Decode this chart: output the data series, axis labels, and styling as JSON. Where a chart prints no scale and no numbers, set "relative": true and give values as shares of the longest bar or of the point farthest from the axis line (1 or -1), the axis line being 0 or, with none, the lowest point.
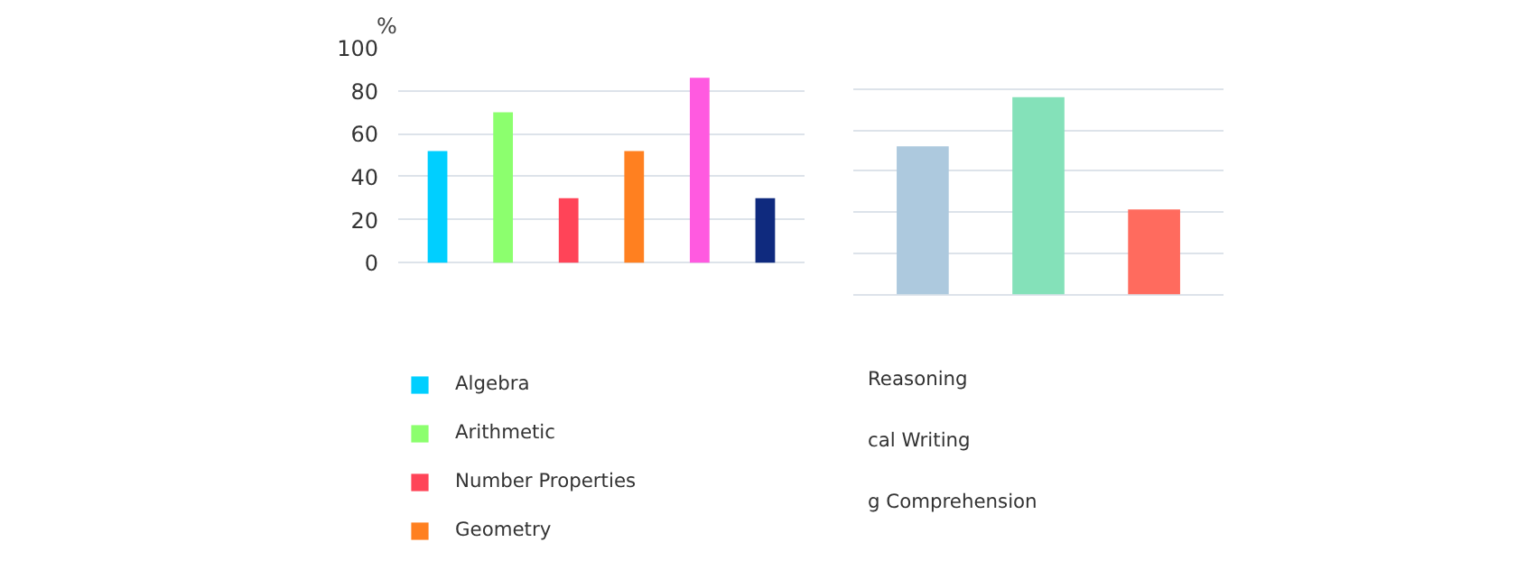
{
  "chart_data": [
    {
      "type": "bar",
      "ylabel": "%",
      "categories": [
        null,
        null,
        null,
        null,
        null,
        null
      ],
      "ylim": [
        0,
        100
      ],
      "yticks": [
        0,
        20,
        40,
        60,
        80,
        100
      ],
      "grid": "y",
      "legend": "bottom",
      "series": [
        {
          "name": "Algebra",
          "color": "#00cfff",
          "values": [
            52,
            null,
            null,
            null,
            null,
            null
          ]
        },
        {
          "name": "Arithmetic",
          "color": "#8cff6e",
          "values": [
            null,
            70,
            null,
            null,
            null,
            null
          ]
        },
        {
          "name": "Number Properties",
          "color": "#ff4458",
          "values": [
            null,
            null,
            30,
            null,
            null,
            null
          ]
        },
        {
          "name": "Geometry",
          "color": "#ff8020",
          "values": [
            null,
            null,
            null,
            52,
            null,
            null
          ]
        },
        {
          "color": "#ff5ae0",
          "values": [
            null,
            null,
            null,
            null,
            86,
            null
          ]
        },
        {
          "color": "#0f2a7e",
          "values": [
            null,
            null,
            null,
            null,
            null,
            30
          ]
        }
      ]
    },
    {
      "type": "bar",
      "relative": true,
      "categories": [
        null,
        null,
        null
      ],
      "grid": "y",
      "values": [
        0.75,
        1,
        0.43
      ],
      "colors": [
        "#adc9de",
        "#84e1b9",
        "#ff6b5e"
      ],
      "annotations": [
        "Reasoning",
        "cal Writing",
        "g Comprehension"
      ]
    }
  ]
}
